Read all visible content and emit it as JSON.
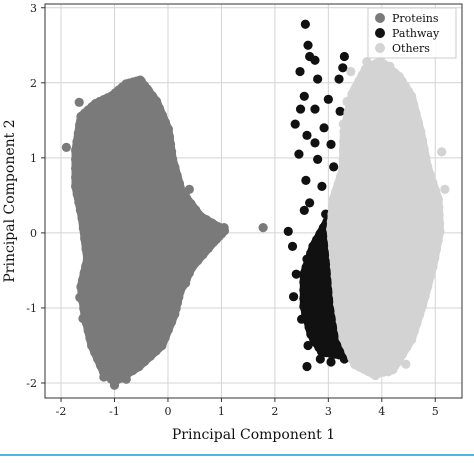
{
  "chart_data": {
    "type": "scatter",
    "xlabel": "Principal Component 1",
    "ylabel": "Principal Component 2",
    "xlim": [
      -2.3,
      5.5
    ],
    "ylim": [
      -2.2,
      3.05
    ],
    "xticks": [
      -2,
      -1,
      0,
      1,
      2,
      3,
      4,
      5
    ],
    "yticks": [
      -2,
      -1,
      0,
      1,
      2,
      3
    ],
    "grid": true,
    "legend_position": "top-right",
    "series": [
      {
        "name": "Proteins",
        "color": "#7a7a7a",
        "points": [
          [
            -1.9,
            1.14
          ],
          [
            -1.66,
            1.74
          ],
          [
            -1.59,
            -1.14
          ],
          [
            -1.65,
            -0.86
          ],
          [
            -1.2,
            -1.92
          ],
          [
            -1.0,
            -2.03
          ],
          [
            -0.78,
            -1.95
          ],
          [
            -0.5,
            2.02
          ],
          [
            -0.39,
            1.92
          ],
          [
            0.55,
            -0.18
          ],
          [
            0.83,
            0.0
          ],
          [
            1.05,
            0.07
          ],
          [
            1.78,
            0.07
          ],
          [
            0.33,
            -0.67
          ],
          [
            0.4,
            0.58
          ]
        ],
        "hull": [
          [
            -0.52,
            2.03
          ],
          [
            -0.22,
            1.75
          ],
          [
            0.0,
            1.38
          ],
          [
            0.08,
            0.98
          ],
          [
            0.25,
            0.55
          ],
          [
            0.6,
            0.22
          ],
          [
            1.05,
            0.03
          ],
          [
            0.85,
            -0.12
          ],
          [
            0.45,
            -0.45
          ],
          [
            0.22,
            -0.78
          ],
          [
            0.12,
            -1.08
          ],
          [
            -0.12,
            -1.5
          ],
          [
            -0.55,
            -1.78
          ],
          [
            -1.0,
            -1.98
          ],
          [
            -1.2,
            -1.85
          ],
          [
            -1.42,
            -1.5
          ],
          [
            -1.55,
            -1.1
          ],
          [
            -1.62,
            -0.72
          ],
          [
            -1.5,
            -0.35
          ],
          [
            -1.6,
            0.2
          ],
          [
            -1.72,
            0.62
          ],
          [
            -1.72,
            1.1
          ],
          [
            -1.62,
            1.55
          ],
          [
            -1.35,
            1.72
          ],
          [
            -1.05,
            1.82
          ],
          [
            -0.78,
            1.98
          ]
        ]
      },
      {
        "name": "Pathway",
        "color": "#111111",
        "points": [
          [
            2.57,
            2.78
          ],
          [
            2.62,
            2.5
          ],
          [
            2.65,
            2.35
          ],
          [
            2.75,
            2.3
          ],
          [
            3.3,
            2.35
          ],
          [
            3.27,
            2.2
          ],
          [
            2.47,
            2.15
          ],
          [
            2.8,
            2.05
          ],
          [
            3.2,
            2.05
          ],
          [
            2.55,
            1.82
          ],
          [
            2.75,
            1.65
          ],
          [
            3.0,
            1.78
          ],
          [
            3.22,
            1.62
          ],
          [
            2.38,
            1.45
          ],
          [
            2.6,
            1.3
          ],
          [
            2.92,
            1.4
          ],
          [
            3.05,
            1.18
          ],
          [
            2.45,
            1.05
          ],
          [
            2.8,
            0.98
          ],
          [
            3.1,
            0.88
          ],
          [
            2.58,
            0.7
          ],
          [
            2.88,
            0.62
          ],
          [
            2.65,
            0.4
          ],
          [
            2.95,
            0.25
          ],
          [
            2.55,
            0.3
          ],
          [
            2.25,
            0.02
          ],
          [
            2.33,
            -0.18
          ],
          [
            2.6,
            -0.35
          ],
          [
            2.4,
            -0.55
          ],
          [
            2.72,
            -0.72
          ],
          [
            2.35,
            -0.85
          ],
          [
            2.55,
            -0.98
          ],
          [
            2.5,
            -1.15
          ],
          [
            2.68,
            -1.32
          ],
          [
            2.62,
            -1.5
          ],
          [
            2.85,
            -1.68
          ],
          [
            2.6,
            -1.78
          ],
          [
            3.05,
            -1.72
          ],
          [
            3.3,
            -1.68
          ],
          [
            3.55,
            -1.58
          ],
          [
            2.88,
            -0.42
          ],
          [
            3.1,
            -1.05
          ],
          [
            2.75,
            1.2
          ],
          [
            2.48,
            1.65
          ]
        ],
        "hull": [
          [
            2.98,
            0.15
          ],
          [
            2.72,
            -0.18
          ],
          [
            2.55,
            -0.55
          ],
          [
            2.55,
            -0.98
          ],
          [
            2.68,
            -1.35
          ],
          [
            2.88,
            -1.58
          ],
          [
            3.2,
            -1.62
          ],
          [
            3.5,
            -1.55
          ],
          [
            3.58,
            -1.4
          ],
          [
            3.22,
            -1.1
          ],
          [
            3.05,
            -0.75
          ],
          [
            3.05,
            -0.3
          ]
        ]
      },
      {
        "name": "Others",
        "color": "#d3d3d3",
        "points": [
          [
            3.72,
            2.28
          ],
          [
            3.98,
            2.25
          ],
          [
            4.15,
            2.22
          ],
          [
            3.42,
            2.15
          ],
          [
            4.7,
            1.05
          ],
          [
            5.12,
            1.08
          ],
          [
            5.18,
            0.58
          ],
          [
            5.05,
            0.38
          ],
          [
            5.0,
            -0.22
          ],
          [
            4.85,
            -0.7
          ],
          [
            3.55,
            -1.72
          ],
          [
            4.12,
            -1.85
          ],
          [
            3.88,
            -1.9
          ],
          [
            4.45,
            -1.75
          ],
          [
            3.58,
            1.55
          ],
          [
            3.35,
            1.75
          ],
          [
            3.28,
            1.45
          ],
          [
            3.7,
            2.05
          ],
          [
            4.05,
            2.05
          ]
        ],
        "hull": [
          [
            3.98,
            2.28
          ],
          [
            4.32,
            2.08
          ],
          [
            4.55,
            1.82
          ],
          [
            4.72,
            1.35
          ],
          [
            4.85,
            0.88
          ],
          [
            5.05,
            0.45
          ],
          [
            5.08,
            0.02
          ],
          [
            4.95,
            -0.45
          ],
          [
            4.75,
            -0.98
          ],
          [
            4.55,
            -1.42
          ],
          [
            4.2,
            -1.82
          ],
          [
            3.85,
            -1.88
          ],
          [
            3.5,
            -1.75
          ],
          [
            3.28,
            -1.4
          ],
          [
            3.18,
            -0.95
          ],
          [
            3.12,
            -0.45
          ],
          [
            3.05,
            0.05
          ],
          [
            3.1,
            0.45
          ],
          [
            3.28,
            0.85
          ],
          [
            3.3,
            1.35
          ],
          [
            3.45,
            1.85
          ],
          [
            3.7,
            2.18
          ]
        ]
      }
    ]
  }
}
